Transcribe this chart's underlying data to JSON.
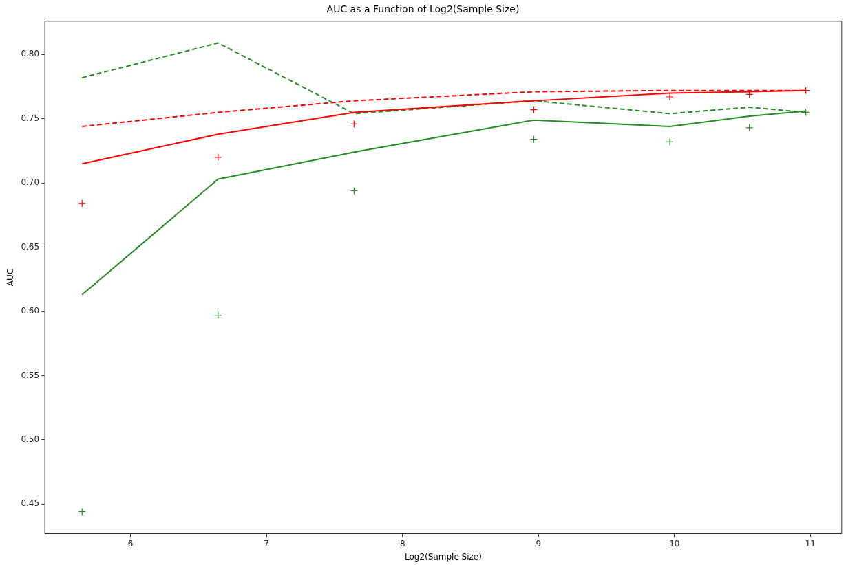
{
  "chart_data": {
    "type": "line",
    "title": "AUC as a Function of Log2(Sample Size)",
    "xlabel": "Log2(Sample Size)",
    "ylabel": "AUC",
    "x": [
      5.644,
      6.644,
      7.644,
      8.966,
      9.966,
      10.551,
      10.966
    ],
    "xlim": [
      5.37,
      11.23
    ],
    "xticks": [
      6,
      7,
      8,
      9,
      10,
      11
    ],
    "ylim": [
      0.427,
      0.826
    ],
    "yticks": [
      0.45,
      {
        "value": 0.5,
        "label": "0.50"
      },
      0.55,
      {
        "value": 0.6,
        "label": "0.60"
      },
      0.65,
      {
        "value": 0.7,
        "label": "0.70"
      },
      0.75,
      {
        "value": 0.8,
        "label": "0.80"
      }
    ],
    "grid": false,
    "legend": false,
    "series": [
      {
        "color": "#ff0000",
        "line_style": "solid",
        "marker": "none",
        "values": [
          0.715,
          0.738,
          0.755,
          0.764,
          0.77,
          0.771,
          0.772
        ]
      },
      {
        "color": "#ff0000",
        "line_style": "dashed",
        "marker": "none",
        "values": [
          0.744,
          0.755,
          0.764,
          0.771,
          0.772,
          0.772,
          0.772
        ]
      },
      {
        "color": "#228b22",
        "line_style": "solid",
        "marker": "none",
        "values": [
          0.613,
          0.703,
          0.724,
          0.749,
          0.744,
          0.752,
          0.756
        ]
      },
      {
        "color": "#228b22",
        "line_style": "dashed",
        "marker": "none",
        "values": [
          0.782,
          0.809,
          0.754,
          0.764,
          0.754,
          0.759,
          0.755
        ]
      },
      {
        "type": "scatter",
        "color": "#ff0000",
        "marker": "cross",
        "values": [
          0.684,
          0.72,
          0.746,
          0.757,
          0.767,
          0.769,
          0.772
        ]
      },
      {
        "type": "scatter",
        "color": "#228b22",
        "marker": "cross",
        "values": [
          0.444,
          0.597,
          0.694,
          0.734,
          0.732,
          0.743,
          0.755
        ]
      }
    ]
  }
}
